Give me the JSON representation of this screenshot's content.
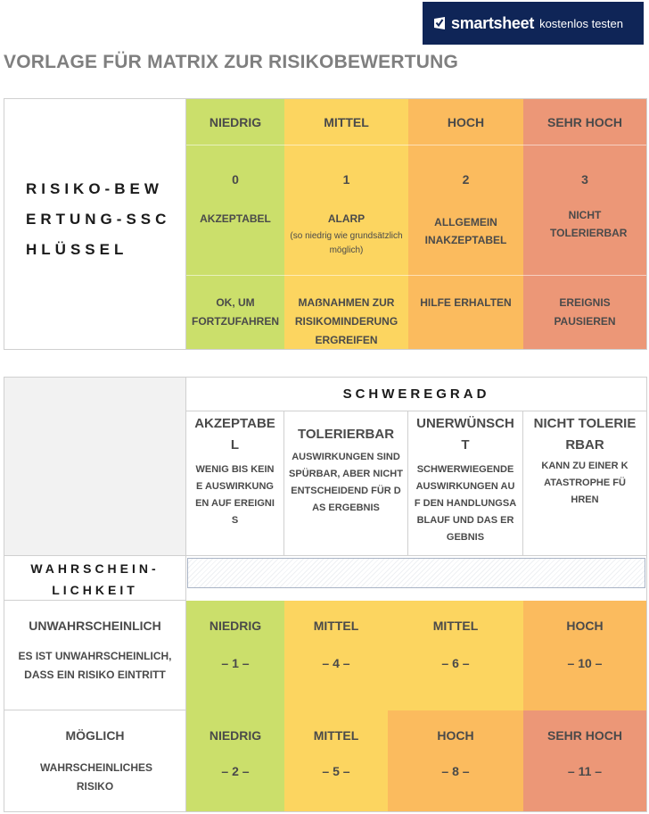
{
  "banner": {
    "brand": "smartsheet",
    "tagline": "kostenlos testen",
    "logo_icon": "smartsheet-check-icon",
    "bg_color": "#0f2557"
  },
  "page_title": "VORLAGE FÜR MATRIX ZUR RISIKOBEWERTUNG",
  "colors": {
    "green": "#cbdf6b",
    "yellow": "#fcd560",
    "orange": "#fbbb5e",
    "red": "#ec9777"
  },
  "key_table": {
    "title": "RISIKO-BEWERTUNG-SSCHLÜSSEL",
    "levels": [
      {
        "header": "NIEDRIG",
        "score": "0",
        "label": "AKZEPTABEL",
        "sub": "",
        "action": "OK, UM FORTZUFAHREN"
      },
      {
        "header": "MITTEL",
        "score": "1",
        "label": "ALARP",
        "sub": "(so niedrig wie grundsätzlich möglich)",
        "action": "MAẞNAHMEN ZUR RISIKOMINDERUNG ERGREIFEN"
      },
      {
        "header": "HOCH",
        "score": "2",
        "label": "ALLGEMEIN INAKZEPTABEL",
        "sub": "",
        "action": "HILFE ERHALTEN"
      },
      {
        "header": "SEHR HOCH",
        "score": "3",
        "label": "NICHT TOLERIERBAR",
        "sub": "",
        "action": "EREIGNIS PAUSIEREN"
      }
    ]
  },
  "matrix": {
    "severity_title": "SCHWEREGRAD",
    "likelihood_title": "WAHRSCHEIN-LICHKEIT",
    "severity": [
      {
        "name": "AKZEPTABEL",
        "desc": "WENIG BIS KEINE AUSWIRKUNGEN AUF EREIGNIS"
      },
      {
        "name": "TOLERIERBAR",
        "desc": "AUSWIRKUNGEN SIND SPÜRBAR, ABER NICHT ENTSCHEIDEND FÜR DAS ERGEBNIS"
      },
      {
        "name": "UNERWÜNSCHT",
        "desc": "SCHWERWIEGENDE AUSWIRKUNGEN AUF DEN HANDLUNGSABLAUF UND DAS ERGEBNIS"
      },
      {
        "name": "NICHT TOLERIERBAR",
        "desc": "KANN ZU EINER KATASTROPHE FÜHREN"
      }
    ],
    "rows": [
      {
        "name": "UNWAHRSCHEINLICH",
        "desc": "ES IST UNWAHRSCHEINLICH, DASS EIN RISIKO EINTRITT",
        "cells": [
          {
            "level": "NIEDRIG",
            "value": "– 1 –",
            "color": "green"
          },
          {
            "level": "MITTEL",
            "value": "– 4 –",
            "color": "yellow"
          },
          {
            "level": "MITTEL",
            "value": "– 6 –",
            "color": "yellow"
          },
          {
            "level": "HOCH",
            "value": "– 10 –",
            "color": "orange"
          }
        ]
      },
      {
        "name": "MÖGLICH",
        "desc": "WAHRSCHEINLICHES RISIKO",
        "cells": [
          {
            "level": "NIEDRIG",
            "value": "– 2 –",
            "color": "green"
          },
          {
            "level": "MITTEL",
            "value": "– 5 –",
            "color": "yellow"
          },
          {
            "level": "HOCH",
            "value": "– 8 –",
            "color": "orange"
          },
          {
            "level": "SEHR HOCH",
            "value": "– 11 –",
            "color": "red"
          }
        ]
      }
    ]
  }
}
